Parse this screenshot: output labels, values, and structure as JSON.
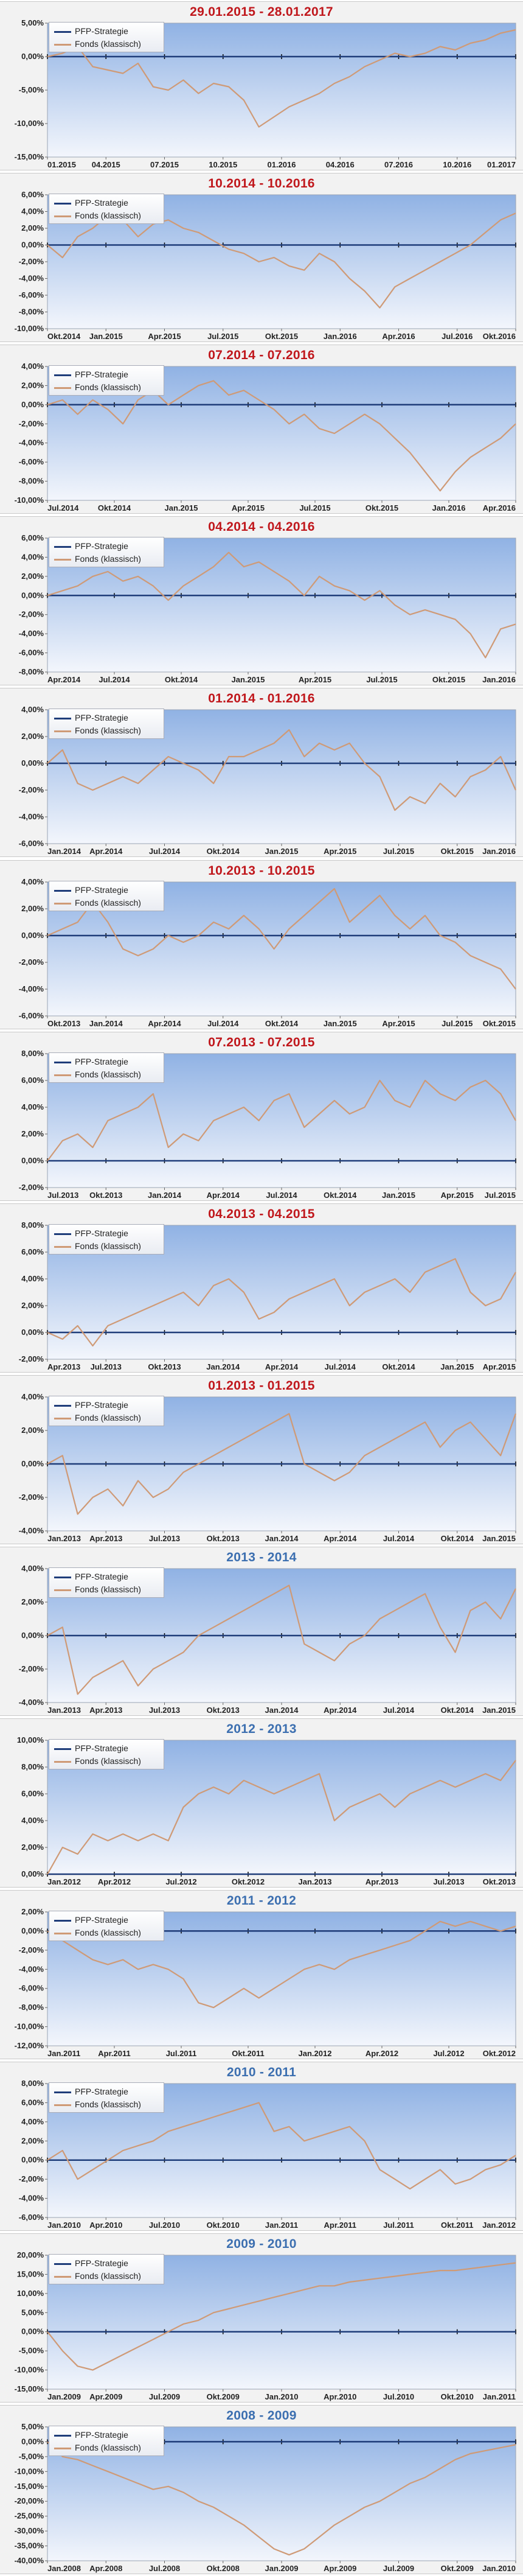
{
  "colors": {
    "title_red": "#c0171c",
    "title_blue": "#3c6fb0",
    "series_pfp": "#1f3d7a",
    "series_fonds": "#cf9a76",
    "plot_top": "#90b2e4",
    "plot_bottom": "#f3f6fc",
    "axis": "#000000"
  },
  "legend": {
    "pfp": "PFP-Strategie",
    "fonds": "Fonds (klassisch)"
  },
  "chart_data": [
    {
      "type": "line",
      "title": "29.01.2015 - 28.01.2017",
      "title_color": "red",
      "y_ticks": [
        "5,00%",
        "0,00%",
        "-5,00%",
        "-10,00%",
        "-15,00%"
      ],
      "ylim": [
        -15,
        5
      ],
      "x_ticks": [
        "01.2015",
        "04.2015",
        "07.2015",
        "10.2015",
        "01.2016",
        "04.2016",
        "07.2016",
        "10.2016",
        "01.2017"
      ],
      "series": [
        {
          "name": "PFP-Strategie",
          "values": [
            0,
            0
          ]
        },
        {
          "name": "Fonds (klassisch)",
          "values": [
            0,
            0.5,
            1.5,
            -1.5,
            -2,
            -2.5,
            -1,
            -4.5,
            -5,
            -3.5,
            -5.5,
            -4,
            -4.5,
            -6.5,
            -10.5,
            -9,
            -7.5,
            -6.5,
            -5.5,
            -4,
            -3,
            -1.5,
            -0.5,
            0.5,
            0,
            0.5,
            1.5,
            1,
            2,
            2.5,
            3.5,
            4
          ]
        }
      ]
    },
    {
      "type": "line",
      "title": "10.2014 - 10.2016",
      "title_color": "red",
      "y_ticks": [
        "6,00%",
        "4,00%",
        "2,00%",
        "0,00%",
        "-2,00%",
        "-4,00%",
        "-6,00%",
        "-8,00%",
        "-10,00%"
      ],
      "ylim": [
        -10,
        6
      ],
      "x_ticks": [
        "Okt.2014",
        "Jan.2015",
        "Apr.2015",
        "Jul.2015",
        "Okt.2015",
        "Jan.2016",
        "Apr.2016",
        "Jul.2016",
        "Okt.2016"
      ],
      "series": [
        {
          "name": "PFP-Strategie",
          "values": [
            0,
            0
          ]
        },
        {
          "name": "Fonds (klassisch)",
          "values": [
            0,
            -1.5,
            1,
            2,
            3.5,
            3,
            1,
            2.5,
            3,
            2,
            1.5,
            0.5,
            -0.5,
            -1,
            -2,
            -1.5,
            -2.5,
            -3,
            -1,
            -2,
            -4,
            -5.5,
            -7.5,
            -5,
            -4,
            -3,
            -2,
            -1,
            0,
            1.5,
            3,
            3.8
          ]
        }
      ]
    },
    {
      "type": "line",
      "title": "07.2014 - 07.2016",
      "title_color": "red",
      "y_ticks": [
        "4,00%",
        "2,00%",
        "0,00%",
        "-2,00%",
        "-4,00%",
        "-6,00%",
        "-8,00%",
        "-10,00%"
      ],
      "ylim": [
        -10,
        4
      ],
      "x_ticks": [
        "Jul.2014",
        "Okt.2014",
        "Jan.2015",
        "Apr.2015",
        "Jul.2015",
        "Okt.2015",
        "Jan.2016",
        "Apr.2016"
      ],
      "series": [
        {
          "name": "PFP-Strategie",
          "values": [
            0,
            0
          ]
        },
        {
          "name": "Fonds (klassisch)",
          "values": [
            0,
            0.5,
            -1,
            0.5,
            -0.5,
            -2,
            0.5,
            1.5,
            0,
            1,
            2,
            2.5,
            1,
            1.5,
            0.5,
            -0.5,
            -2,
            -1,
            -2.5,
            -3,
            -2,
            -1,
            -2,
            -3.5,
            -5,
            -7,
            -9,
            -7,
            -5.5,
            -4.5,
            -3.5,
            -2
          ]
        }
      ]
    },
    {
      "type": "line",
      "title": "04.2014 - 04.2016",
      "title_color": "red",
      "y_ticks": [
        "6,00%",
        "4,00%",
        "2,00%",
        "0,00%",
        "-2,00%",
        "-4,00%",
        "-6,00%",
        "-8,00%"
      ],
      "ylim": [
        -8,
        6
      ],
      "x_ticks": [
        "Apr.2014",
        "Jul.2014",
        "Okt.2014",
        "Jan.2015",
        "Apr.2015",
        "Jul.2015",
        "Okt.2015",
        "Jan.2016"
      ],
      "series": [
        {
          "name": "PFP-Strategie",
          "values": [
            0,
            0
          ]
        },
        {
          "name": "Fonds (klassisch)",
          "values": [
            0,
            0.5,
            1,
            2,
            2.5,
            1.5,
            2,
            1,
            -0.5,
            1,
            2,
            3,
            4.5,
            3,
            3.5,
            2.5,
            1.5,
            0,
            2,
            1,
            0.5,
            -0.5,
            0.5,
            -1,
            -2,
            -1.5,
            -2,
            -2.5,
            -4,
            -6.5,
            -3.5,
            -3
          ]
        }
      ]
    },
    {
      "type": "line",
      "title": "01.2014 - 01.2016",
      "title_color": "red",
      "y_ticks": [
        "4,00%",
        "2,00%",
        "0,00%",
        "-2,00%",
        "-4,00%",
        "-6,00%"
      ],
      "ylim": [
        -6,
        4
      ],
      "x_ticks": [
        "Jan.2014",
        "Apr.2014",
        "Jul.2014",
        "Okt.2014",
        "Jan.2015",
        "Apr.2015",
        "Jul.2015",
        "Okt.2015",
        "Jan.2016"
      ],
      "series": [
        {
          "name": "PFP-Strategie",
          "values": [
            0,
            0
          ]
        },
        {
          "name": "Fonds (klassisch)",
          "values": [
            0,
            1,
            -1.5,
            -2,
            -1.5,
            -1,
            -1.5,
            -0.5,
            0.5,
            0,
            -0.5,
            -1.5,
            0.5,
            0.5,
            1,
            1.5,
            2.5,
            0.5,
            1.5,
            1,
            1.5,
            0,
            -1,
            -3.5,
            -2.5,
            -3,
            -1.5,
            -2.5,
            -1,
            -0.5,
            0.5,
            -2
          ]
        }
      ]
    },
    {
      "type": "line",
      "title": "10.2013 - 10.2015",
      "title_color": "red",
      "y_ticks": [
        "4,00%",
        "2,00%",
        "0,00%",
        "-2,00%",
        "-4,00%",
        "-6,00%"
      ],
      "ylim": [
        -6,
        4
      ],
      "x_ticks": [
        "Okt.2013",
        "Jan.2014",
        "Apr.2014",
        "Jul.2014",
        "Okt.2014",
        "Jan.2015",
        "Apr.2015",
        "Jul.2015",
        "Okt.2015"
      ],
      "series": [
        {
          "name": "PFP-Strategie",
          "values": [
            0,
            0
          ]
        },
        {
          "name": "Fonds (klassisch)",
          "values": [
            0,
            0.5,
            1,
            2.5,
            1,
            -1,
            -1.5,
            -1,
            0,
            -0.5,
            0,
            1,
            0.5,
            1.5,
            0.5,
            -1,
            0.5,
            1.5,
            2.5,
            3.5,
            1,
            2,
            3,
            1.5,
            0.5,
            1.5,
            0,
            -0.5,
            -1.5,
            -2,
            -2.5,
            -4
          ]
        }
      ]
    },
    {
      "type": "line",
      "title": "07.2013 - 07.2015",
      "title_color": "red",
      "y_ticks": [
        "8,00%",
        "6,00%",
        "4,00%",
        "2,00%",
        "0,00%",
        "-2,00%"
      ],
      "ylim": [
        -2,
        8
      ],
      "x_ticks": [
        "Jul.2013",
        "Okt.2013",
        "Jan.2014",
        "Apr.2014",
        "Jul.2014",
        "Okt.2014",
        "Jan.2015",
        "Apr.2015",
        "Jul.2015"
      ],
      "series": [
        {
          "name": "PFP-Strategie",
          "values": [
            0,
            0
          ]
        },
        {
          "name": "Fonds (klassisch)",
          "values": [
            0,
            1.5,
            2,
            1,
            3,
            3.5,
            4,
            5,
            1,
            2,
            1.5,
            3,
            3.5,
            4,
            3,
            4.5,
            5,
            2.5,
            3.5,
            4.5,
            3.5,
            4,
            6,
            4.5,
            4,
            6,
            5,
            4.5,
            5.5,
            6,
            5,
            3
          ]
        }
      ]
    },
    {
      "type": "line",
      "title": "04.2013 - 04.2015",
      "title_color": "red",
      "y_ticks": [
        "8,00%",
        "6,00%",
        "4,00%",
        "2,00%",
        "0,00%",
        "-2,00%"
      ],
      "ylim": [
        -2,
        8
      ],
      "x_ticks": [
        "Apr.2013",
        "Jul.2013",
        "Okt.2013",
        "Jan.2014",
        "Apr.2014",
        "Jul.2014",
        "Okt.2014",
        "Jan.2015",
        "Apr.2015"
      ],
      "series": [
        {
          "name": "PFP-Strategie",
          "values": [
            0,
            0
          ]
        },
        {
          "name": "Fonds (klassisch)",
          "values": [
            0,
            -0.5,
            0.5,
            -1,
            0.5,
            1,
            1.5,
            2,
            2.5,
            3,
            2,
            3.5,
            4,
            3,
            1,
            1.5,
            2.5,
            3,
            3.5,
            4,
            2,
            3,
            3.5,
            4,
            3,
            4.5,
            5,
            5.5,
            3,
            2,
            2.5,
            4.5
          ]
        }
      ]
    },
    {
      "type": "line",
      "title": "01.2013 - 01.2015",
      "title_color": "red",
      "y_ticks": [
        "4,00%",
        "2,00%",
        "0,00%",
        "-2,00%",
        "-4,00%"
      ],
      "ylim": [
        -4,
        4
      ],
      "x_ticks": [
        "Jan.2013",
        "Apr.2013",
        "Jul.2013",
        "Okt.2013",
        "Jan.2014",
        "Apr.2014",
        "Jul.2014",
        "Okt.2014",
        "Jan.2015"
      ],
      "series": [
        {
          "name": "PFP-Strategie",
          "values": [
            0,
            0
          ]
        },
        {
          "name": "Fonds (klassisch)",
          "values": [
            0,
            0.5,
            -3,
            -2,
            -1.5,
            -2.5,
            -1,
            -2,
            -1.5,
            -0.5,
            0,
            0.5,
            1,
            1.5,
            2,
            2.5,
            3,
            0,
            -0.5,
            -1,
            -0.5,
            0.5,
            1,
            1.5,
            2,
            2.5,
            1,
            2,
            2.5,
            1.5,
            0.5,
            3
          ]
        }
      ]
    },
    {
      "type": "line",
      "title": "2013 - 2014",
      "title_color": "blue",
      "y_ticks": [
        "4,00%",
        "2,00%",
        "0,00%",
        "-2,00%",
        "-4,00%"
      ],
      "ylim": [
        -4,
        4
      ],
      "x_ticks": [
        "Jan.2013",
        "Apr.2013",
        "Jul.2013",
        "Okt.2013",
        "Jan.2014",
        "Apr.2014",
        "Jul.2014",
        "Okt.2014",
        "Jan.2015"
      ],
      "series": [
        {
          "name": "PFP-Strategie",
          "values": [
            0,
            0
          ]
        },
        {
          "name": "Fonds (klassisch)",
          "values": [
            0,
            0.5,
            -3.5,
            -2.5,
            -2,
            -1.5,
            -3,
            -2,
            -1.5,
            -1,
            0,
            0.5,
            1,
            1.5,
            2,
            2.5,
            3,
            -0.5,
            -1,
            -1.5,
            -0.5,
            0,
            1,
            1.5,
            2,
            2.5,
            0.5,
            -1,
            1.5,
            2,
            1,
            2.8
          ]
        }
      ]
    },
    {
      "type": "line",
      "title": "2012 - 2013",
      "title_color": "blue",
      "y_ticks": [
        "10,00%",
        "8,00%",
        "6,00%",
        "4,00%",
        "2,00%",
        "0,00%"
      ],
      "ylim": [
        0,
        10
      ],
      "x_ticks": [
        "Jan.2012",
        "Apr.2012",
        "Jul.2012",
        "Okt.2012",
        "Jan.2013",
        "Apr.2013",
        "Jul.2013",
        "Okt.2013"
      ],
      "series": [
        {
          "name": "PFP-Strategie",
          "values": [
            0,
            0
          ]
        },
        {
          "name": "Fonds (klassisch)",
          "values": [
            0,
            2,
            1.5,
            3,
            2.5,
            3,
            2.5,
            3,
            2.5,
            5,
            6,
            6.5,
            6,
            7,
            6.5,
            6,
            6.5,
            7,
            7.5,
            4,
            5,
            5.5,
            6,
            5,
            6,
            6.5,
            7,
            6.5,
            7,
            7.5,
            7,
            8.5
          ]
        }
      ]
    },
    {
      "type": "line",
      "title": "2011 - 2012",
      "title_color": "blue",
      "y_ticks": [
        "2,00%",
        "0,00%",
        "-2,00%",
        "-4,00%",
        "-6,00%",
        "-8,00%",
        "-10,00%",
        "-12,00%"
      ],
      "ylim": [
        -12,
        2
      ],
      "x_ticks": [
        "Jan.2011",
        "Apr.2011",
        "Jul.2011",
        "Okt.2011",
        "Jan.2012",
        "Apr.2012",
        "Jul.2012",
        "Okt.2012"
      ],
      "series": [
        {
          "name": "PFP-Strategie",
          "values": [
            0,
            0
          ]
        },
        {
          "name": "Fonds (klassisch)",
          "values": [
            0,
            -1,
            -2,
            -3,
            -3.5,
            -3,
            -4,
            -3.5,
            -4,
            -5,
            -7.5,
            -8,
            -7,
            -6,
            -7,
            -6,
            -5,
            -4,
            -3.5,
            -4,
            -3,
            -2.5,
            -2,
            -1.5,
            -1,
            0,
            1,
            0.5,
            1,
            0.5,
            0,
            0.5
          ]
        }
      ]
    },
    {
      "type": "line",
      "title": "2010 - 2011",
      "title_color": "blue",
      "y_ticks": [
        "8,00%",
        "6,00%",
        "4,00%",
        "2,00%",
        "0,00%",
        "-2,00%",
        "-4,00%",
        "-6,00%"
      ],
      "ylim": [
        -6,
        8
      ],
      "x_ticks": [
        "Jan.2010",
        "Apr.2010",
        "Jul.2010",
        "Okt.2010",
        "Jan.2011",
        "Apr.2011",
        "Jul.2011",
        "Okt.2011",
        "Jan.2012"
      ],
      "series": [
        {
          "name": "PFP-Strategie",
          "values": [
            0,
            0
          ]
        },
        {
          "name": "Fonds (klassisch)",
          "values": [
            0,
            1,
            -2,
            -1,
            0,
            1,
            1.5,
            2,
            3,
            3.5,
            4,
            4.5,
            5,
            5.5,
            6,
            3,
            3.5,
            2,
            2.5,
            3,
            3.5,
            2,
            -1,
            -2,
            -3,
            -2,
            -1,
            -2.5,
            -2,
            -1,
            -0.5,
            0.5
          ]
        }
      ]
    },
    {
      "type": "line",
      "title": "2009 - 2010",
      "title_color": "blue",
      "y_ticks": [
        "20,00%",
        "15,00%",
        "10,00%",
        "5,00%",
        "0,00%",
        "-5,00%",
        "-10,00%",
        "-15,00%"
      ],
      "ylim": [
        -15,
        20
      ],
      "x_ticks": [
        "Jan.2009",
        "Apr.2009",
        "Jul.2009",
        "Okt.2009",
        "Jan.2010",
        "Apr.2010",
        "Jul.2010",
        "Okt.2010",
        "Jan.2011"
      ],
      "series": [
        {
          "name": "PFP-Strategie",
          "values": [
            0,
            0
          ]
        },
        {
          "name": "Fonds (klassisch)",
          "values": [
            0,
            -5,
            -9,
            -10,
            -8,
            -6,
            -4,
            -2,
            0,
            2,
            3,
            5,
            6,
            7,
            8,
            9,
            10,
            11,
            12,
            12,
            13,
            13.5,
            14,
            14.5,
            15,
            15.5,
            16,
            16,
            16.5,
            17,
            17.5,
            18
          ]
        }
      ]
    },
    {
      "type": "line",
      "title": "2008 - 2009",
      "title_color": "blue",
      "y_ticks": [
        "5,00%",
        "0,00%",
        "-5,00%",
        "-10,00%",
        "-15,00%",
        "-20,00%",
        "-25,00%",
        "-30,00%",
        "-35,00%",
        "-40,00%"
      ],
      "ylim": [
        -40,
        5
      ],
      "x_ticks": [
        "Jan.2008",
        "Apr.2008",
        "Jul.2008",
        "Okt.2008",
        "Jan.2009",
        "Apr.2009",
        "Jul.2009",
        "Okt.2009",
        "Jan.2010"
      ],
      "series": [
        {
          "name": "PFP-Strategie",
          "values": [
            0,
            0
          ]
        },
        {
          "name": "Fonds (klassisch)",
          "values": [
            0,
            -5,
            -6,
            -8,
            -10,
            -12,
            -14,
            -16,
            -15,
            -17,
            -20,
            -22,
            -25,
            -28,
            -32,
            -36,
            -38,
            -36,
            -32,
            -28,
            -25,
            -22,
            -20,
            -17,
            -14,
            -12,
            -9,
            -6,
            -4,
            -3,
            -2,
            -1
          ]
        }
      ]
    }
  ]
}
